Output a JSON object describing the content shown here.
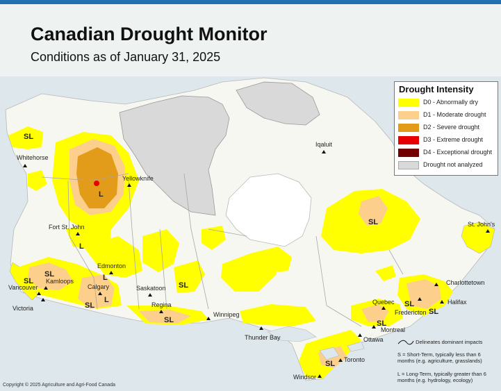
{
  "title": "Canadian Drought Monitor",
  "subtitle": "Conditions as of January 31, 2025",
  "legend": {
    "title": "Drought Intensity",
    "items": [
      {
        "label": "D0 - Abnormally dry",
        "color": "#ffff00"
      },
      {
        "label": "D1 - Moderate drought",
        "color": "#fcd08c"
      },
      {
        "label": "D2 - Severe drought",
        "color": "#e39b1a"
      },
      {
        "label": "D3 - Extreme drought",
        "color": "#e60000"
      },
      {
        "label": "D4 - Exceptional drought",
        "color": "#730000"
      },
      {
        "label": "Drought not analyzed",
        "color": "#d9d9d9"
      }
    ]
  },
  "impacts_note": {
    "line_label": "Delineates dominant impacts",
    "short_term": "S = Short-Term, typically less than 6 months (e.g. agriculture, grasslands)",
    "long_term": "L = Long-Term, typically greater than 6 months (e.g. hydrology, ecology)"
  },
  "copyright": "Copyright © 2025 Agriculture and Agri-Food Canada",
  "cities": {
    "whitehorse": "Whitehorse",
    "yellowknife": "Yellowknife",
    "iqaluit": "Iqaluit",
    "fort_st_john": "Fort St. John",
    "edmonton": "Edmonton",
    "calgary": "Calgary",
    "kamloops": "Kamloops",
    "vancouver": "Vancouver",
    "victoria": "Victoria",
    "saskatoon": "Saskatoon",
    "regina": "Regina",
    "winnipeg": "Winnipeg",
    "thunder_bay": "Thunder Bay",
    "toronto": "Toronto",
    "windsor": "Windsor",
    "ottawa": "Ottawa",
    "montreal": "Montreal",
    "quebec": "Quebec",
    "fredericton": "Fredericton",
    "halifax": "Halifax",
    "charlottetown": "Charlottetown",
    "st_johns": "St. John's"
  },
  "impact_codes": {
    "sl": "SL",
    "l": "L"
  }
}
